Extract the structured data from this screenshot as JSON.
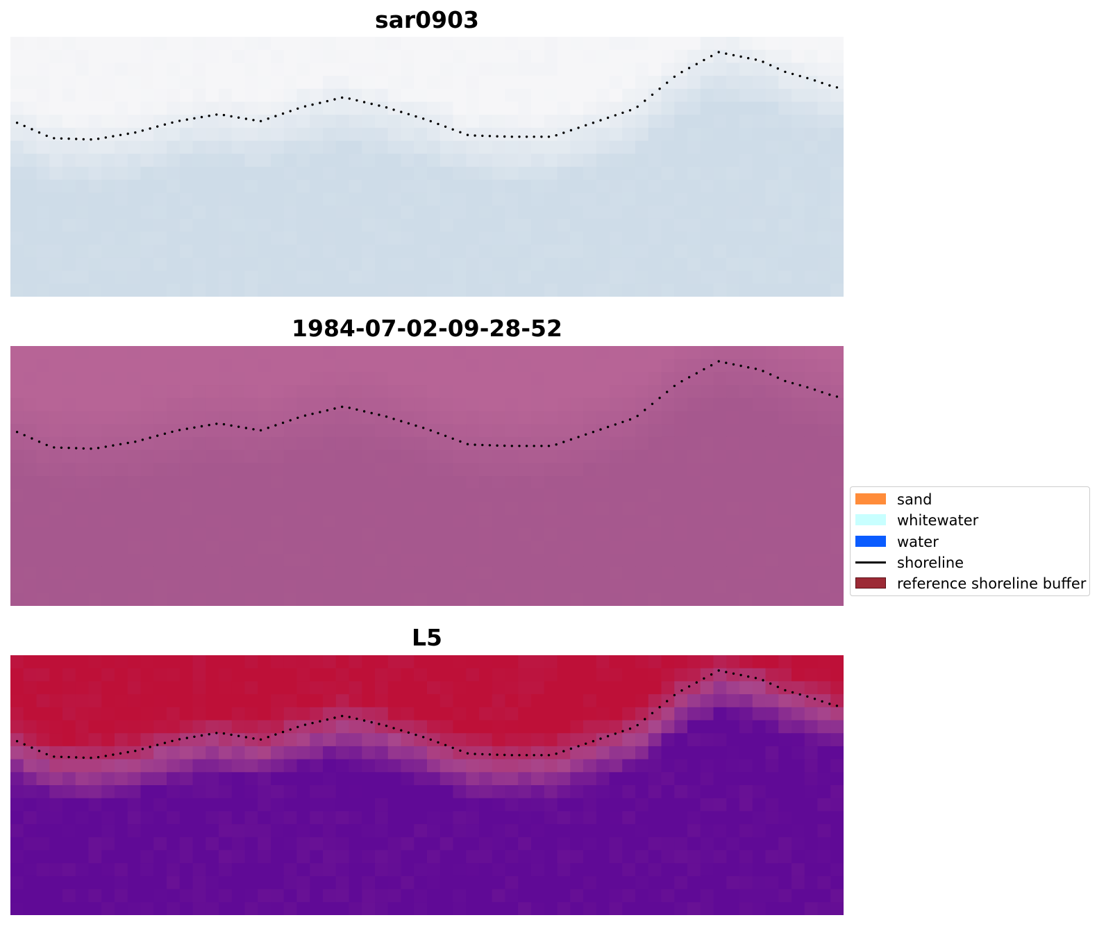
{
  "chart_data": [
    {
      "type": "heatmap",
      "title": "sar0903",
      "xlabel": "",
      "ylabel": "",
      "grid": false,
      "colormap": "cool-grey (pale)",
      "shoreline": {
        "x": [
          0,
          0.05,
          0.1,
          0.15,
          0.2,
          0.25,
          0.3,
          0.35,
          0.4,
          0.45,
          0.5,
          0.55,
          0.6,
          0.65,
          0.7,
          0.75,
          0.8,
          0.85,
          0.9,
          0.93,
          0.96,
          0.99
        ],
        "y": [
          0.48,
          0.61,
          0.62,
          0.57,
          0.49,
          0.44,
          0.49,
          0.39,
          0.32,
          0.39,
          0.48,
          0.59,
          0.6,
          0.6,
          0.5,
          0.4,
          0.16,
          0.0,
          0.06,
          0.14,
          0.19,
          0.25
        ]
      }
    },
    {
      "type": "heatmap",
      "title": "1984-07-02-09-28-52",
      "xlabel": "",
      "ylabel": "",
      "grid": false,
      "colormap": "uniform mauve",
      "shoreline": {
        "x": [
          0,
          0.05,
          0.1,
          0.15,
          0.2,
          0.25,
          0.3,
          0.35,
          0.4,
          0.45,
          0.5,
          0.55,
          0.6,
          0.65,
          0.7,
          0.75,
          0.8,
          0.85,
          0.9,
          0.93,
          0.96,
          0.99
        ],
        "y": [
          0.48,
          0.61,
          0.62,
          0.57,
          0.49,
          0.44,
          0.49,
          0.39,
          0.32,
          0.39,
          0.48,
          0.59,
          0.6,
          0.6,
          0.5,
          0.4,
          0.16,
          0.0,
          0.06,
          0.14,
          0.19,
          0.25
        ]
      }
    },
    {
      "type": "heatmap",
      "title": "L5",
      "xlabel": "",
      "ylabel": "",
      "grid": false,
      "colormap": "crimson (land) to indigo (sea)",
      "shoreline": {
        "x": [
          0,
          0.05,
          0.1,
          0.15,
          0.2,
          0.25,
          0.3,
          0.35,
          0.4,
          0.45,
          0.5,
          0.55,
          0.6,
          0.65,
          0.7,
          0.75,
          0.8,
          0.85,
          0.9,
          0.93,
          0.96,
          0.99
        ],
        "y": [
          0.48,
          0.61,
          0.62,
          0.57,
          0.49,
          0.44,
          0.49,
          0.39,
          0.32,
          0.39,
          0.48,
          0.59,
          0.6,
          0.6,
          0.5,
          0.4,
          0.16,
          0.0,
          0.06,
          0.14,
          0.19,
          0.25
        ]
      }
    }
  ],
  "legend": {
    "placement": "right",
    "items": [
      {
        "label": "sand",
        "type": "patch",
        "color": "#ff8c3a",
        "border": "#ff8c3a"
      },
      {
        "label": "whitewater",
        "type": "patch",
        "color": "#c8ffff",
        "border": "#c8ffff"
      },
      {
        "label": "water",
        "type": "patch",
        "color": "#0a5cff",
        "border": "#0a5cff"
      },
      {
        "label": "shoreline",
        "type": "line",
        "color": "#000000"
      },
      {
        "label": "reference shoreline buffer",
        "type": "patch",
        "color": "#9c2a35",
        "border": "#5a1018"
      }
    ]
  }
}
